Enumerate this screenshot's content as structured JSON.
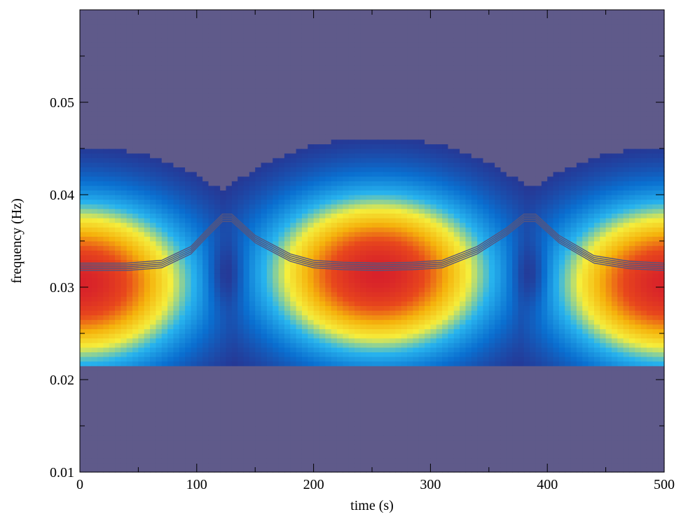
{
  "chart_data": {
    "type": "heatmap",
    "title": "",
    "xlabel": "time (s)",
    "ylabel": "frequency (Hz)",
    "xlim": [
      0,
      500
    ],
    "ylim": [
      0.01,
      0.06
    ],
    "x_ticks": [
      0,
      100,
      200,
      300,
      400,
      500
    ],
    "x_tick_labels": [
      "0",
      "100",
      "200",
      "300",
      "400",
      "500"
    ],
    "y_ticks": [
      0.01,
      0.02,
      0.03,
      0.04,
      0.05
    ],
    "y_tick_labels": [
      "0.01",
      "0.02",
      "0.03",
      "0.04",
      "0.05"
    ],
    "grid": false,
    "legend": "none",
    "colormap": [
      "#5f5a8a",
      "#2a2f8c",
      "#0a6fd0",
      "#28b4ee",
      "#f5ee3c",
      "#f5b20c",
      "#e8481c",
      "#d8222a"
    ],
    "contour_color": "#55557f",
    "surface": {
      "description_free": true,
      "lobes": [
        {
          "t_center": 0,
          "f_center": 0.0305,
          "peak": 1.0
        },
        {
          "t_center": 255,
          "f_center": 0.0315,
          "peak": 1.0
        },
        {
          "t_center": 505,
          "f_center": 0.0305,
          "peak": 1.0
        }
      ],
      "minima": [
        {
          "t": 125,
          "f": 0.0315
        },
        {
          "t": 385,
          "f": 0.0315
        }
      ]
    },
    "ridge": {
      "x": [
        0,
        40,
        70,
        95,
        110,
        122,
        130,
        150,
        180,
        200,
        225,
        255,
        285,
        310,
        340,
        365,
        380,
        390,
        410,
        440,
        470,
        500
      ],
      "y": [
        0.0322,
        0.0322,
        0.0325,
        0.034,
        0.036,
        0.0375,
        0.0375,
        0.0352,
        0.0332,
        0.0325,
        0.0323,
        0.0322,
        0.0323,
        0.0325,
        0.034,
        0.036,
        0.0375,
        0.0375,
        0.0352,
        0.033,
        0.0324,
        0.0322
      ]
    }
  }
}
